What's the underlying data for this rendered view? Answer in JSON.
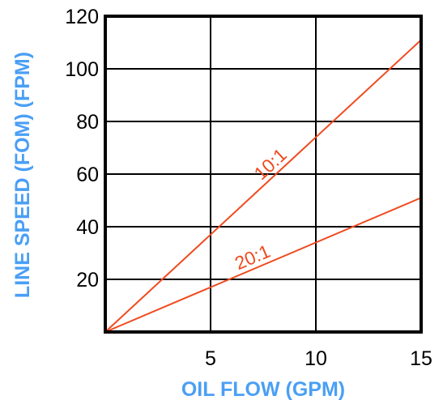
{
  "chart_data": {
    "type": "line",
    "xlabel": "OIL FLOW (GPM)",
    "ylabel": "LINE SPEED (FOM) (FPM)",
    "xlim": [
      0,
      15
    ],
    "ylim": [
      0,
      120
    ],
    "x_ticks": [
      5,
      10,
      15
    ],
    "y_ticks": [
      20,
      40,
      60,
      80,
      100,
      120
    ],
    "grid": true,
    "series": [
      {
        "name": "10:1",
        "x": [
          0,
          15
        ],
        "y": [
          0,
          111
        ]
      },
      {
        "name": "20:1",
        "x": [
          0,
          15
        ],
        "y": [
          0,
          51
        ]
      }
    ]
  },
  "colors": {
    "axis_title": "#4a9ff5",
    "series_line": "#f04a1e",
    "grid": "#000000"
  }
}
